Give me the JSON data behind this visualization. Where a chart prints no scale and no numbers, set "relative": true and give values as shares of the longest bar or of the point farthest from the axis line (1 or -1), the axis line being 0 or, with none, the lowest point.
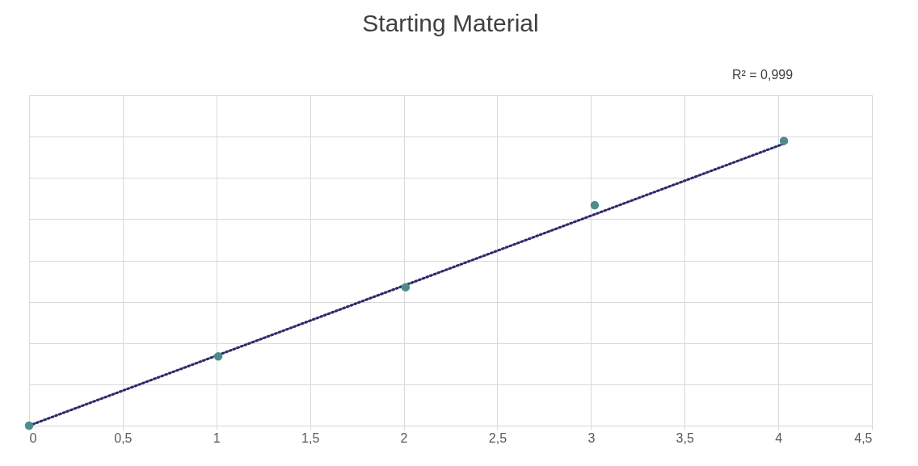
{
  "chart_data": {
    "type": "scatter",
    "title": "Starting Material",
    "relative": true,
    "grid": true,
    "annotations": [
      "R² = 0,999"
    ],
    "xlim": [
      0,
      4.5
    ],
    "xticks": [
      0,
      {
        "value": 0.5,
        "label": "0,5"
      },
      1,
      {
        "value": 1.5,
        "label": "1,5"
      },
      2,
      {
        "value": 2.5,
        "label": "2,5"
      },
      3,
      {
        "value": 3.5,
        "label": "3,5"
      },
      4,
      {
        "value": 4.5,
        "label": "4,5"
      }
    ],
    "series": [
      {
        "marker": "circle",
        "color": "#4e8c8c",
        "x": [
          0,
          1.01,
          2.01,
          3.02,
          4.03
        ],
        "values": [
          0,
          0.243,
          0.486,
          0.774,
          1
        ]
      },
      {
        "type": "line",
        "marker": "none",
        "color": "#2e2a6e",
        "line_style": "dotted",
        "x": [
          0,
          4.03
        ],
        "values": [
          0,
          0.99
        ]
      }
    ]
  }
}
